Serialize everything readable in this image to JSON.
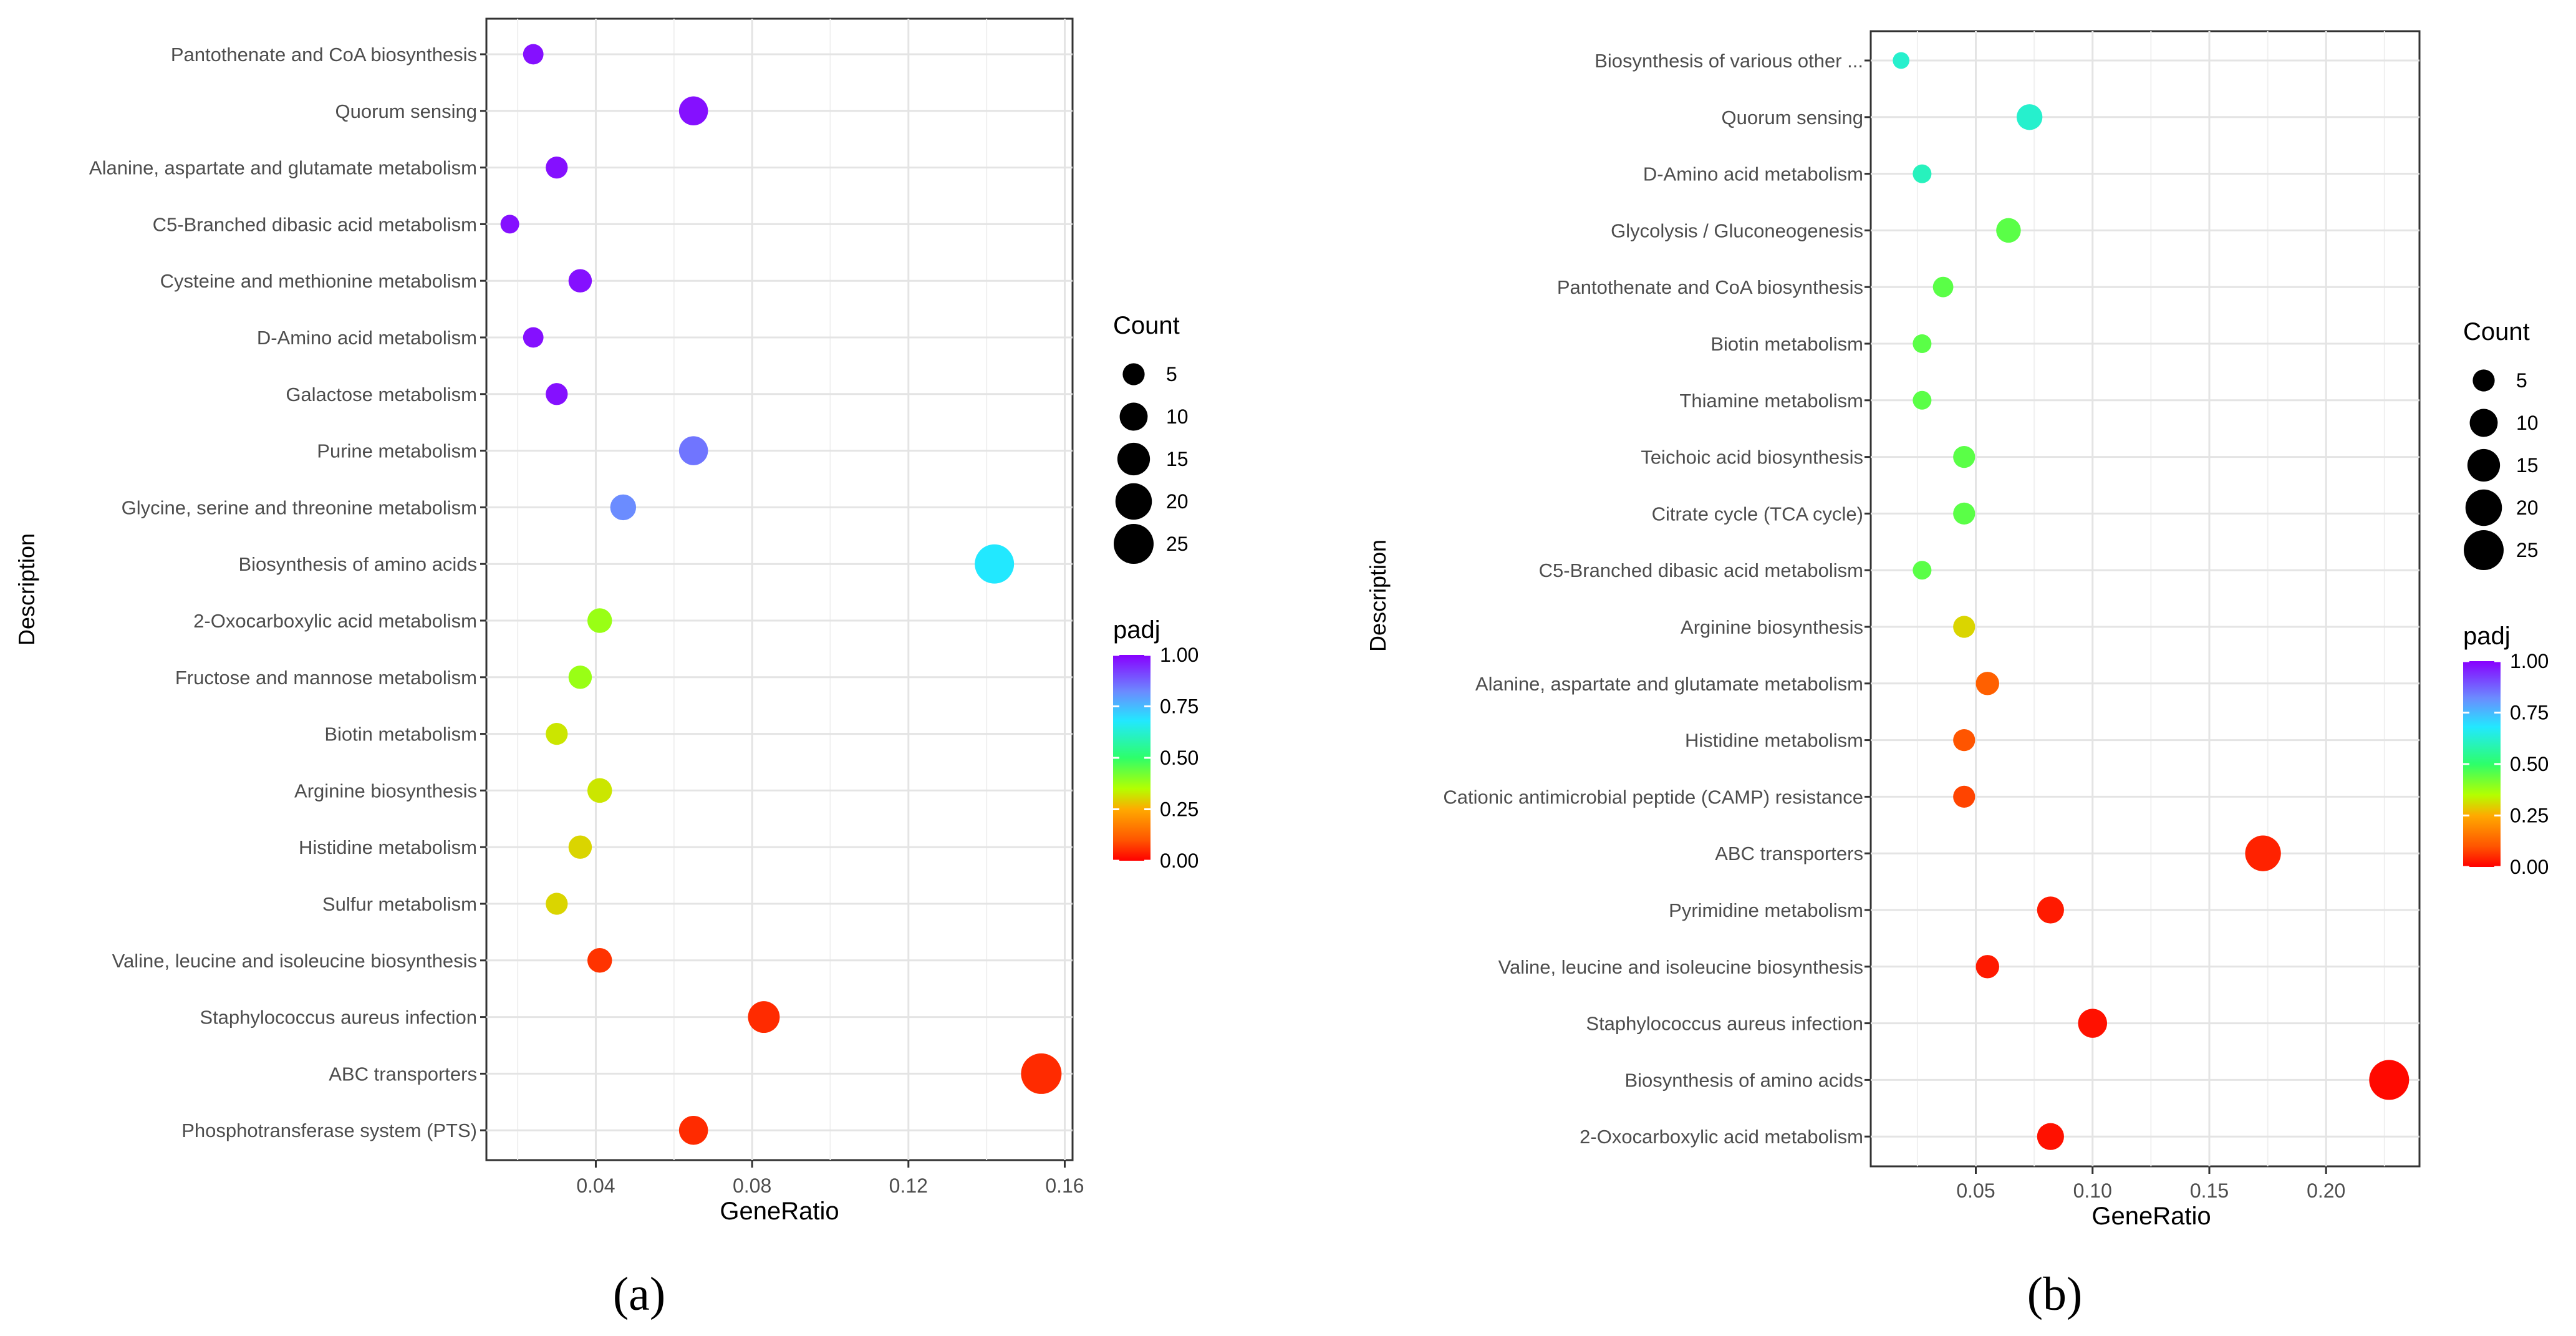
{
  "panels": [
    {
      "caption": "(a)",
      "legend": {
        "count_title": "Count",
        "count_levels": [
          5,
          10,
          15,
          20,
          25
        ],
        "color_title": "padj",
        "color_ticks": [
          "1.00",
          "0.75",
          "0.50",
          "0.25",
          "0.00"
        ]
      }
    },
    {
      "caption": "(b)",
      "legend": {
        "count_title": "Count",
        "count_levels": [
          5,
          10,
          15,
          20,
          25
        ],
        "color_title": "padj",
        "color_ticks": [
          "1.00",
          "0.75",
          "0.50",
          "0.25",
          "0.00"
        ]
      }
    }
  ],
  "chart_data": [
    {
      "type": "scatter",
      "title": "",
      "xlabel": "GeneRatio",
      "ylabel": "Description",
      "xlim": [
        0.012,
        0.162
      ],
      "xticks": [
        0.04,
        0.08,
        0.12,
        0.16
      ],
      "xtick_labels": [
        "0.04",
        "0.08",
        "0.12",
        "0.16"
      ],
      "color_scale": "padj",
      "size_scale": "Count",
      "grid": true,
      "points": [
        {
          "label": "Pantothenate and CoA biosynthesis",
          "x": 0.024,
          "count": 4,
          "padj": 0.98
        },
        {
          "label": "Quorum sensing",
          "x": 0.065,
          "count": 11,
          "padj": 0.98
        },
        {
          "label": "Alanine, aspartate and glutamate metabolism",
          "x": 0.03,
          "count": 5,
          "padj": 0.98
        },
        {
          "label": "C5-Branched dibasic acid metabolism",
          "x": 0.018,
          "count": 3,
          "padj": 0.98
        },
        {
          "label": "Cysteine and methionine metabolism",
          "x": 0.036,
          "count": 6,
          "padj": 0.98
        },
        {
          "label": "D-Amino acid metabolism",
          "x": 0.024,
          "count": 4,
          "padj": 0.98
        },
        {
          "label": "Galactose metabolism",
          "x": 0.03,
          "count": 5,
          "padj": 0.98
        },
        {
          "label": "Purine metabolism",
          "x": 0.065,
          "count": 11,
          "padj": 0.85
        },
        {
          "label": "Glycine, serine and threonine metabolism",
          "x": 0.047,
          "count": 8,
          "padj": 0.82
        },
        {
          "label": "Biosynthesis of amino acids",
          "x": 0.142,
          "count": 24,
          "padj": 0.68
        },
        {
          "label": "2-Oxocarboxylic acid metabolism",
          "x": 0.041,
          "count": 7,
          "padj": 0.38
        },
        {
          "label": "Fructose and mannose metabolism",
          "x": 0.036,
          "count": 6,
          "padj": 0.38
        },
        {
          "label": "Biotin metabolism",
          "x": 0.03,
          "count": 5,
          "padj": 0.32
        },
        {
          "label": "Arginine biosynthesis",
          "x": 0.041,
          "count": 7,
          "padj": 0.32
        },
        {
          "label": "Histidine metabolism",
          "x": 0.036,
          "count": 6,
          "padj": 0.3
        },
        {
          "label": "Sulfur metabolism",
          "x": 0.03,
          "count": 5,
          "padj": 0.3
        },
        {
          "label": "Valine, leucine and isoleucine biosynthesis",
          "x": 0.041,
          "count": 7,
          "padj": 0.06
        },
        {
          "label": "Staphylococcus aureus infection",
          "x": 0.083,
          "count": 14,
          "padj": 0.05
        },
        {
          "label": "ABC transporters",
          "x": 0.154,
          "count": 26,
          "padj": 0.05
        },
        {
          "label": "Phosphotransferase system (PTS)",
          "x": 0.065,
          "count": 11,
          "padj": 0.05
        }
      ]
    },
    {
      "type": "scatter",
      "title": "",
      "xlabel": "GeneRatio",
      "ylabel": "Description",
      "xlim": [
        0.005,
        0.24
      ],
      "xticks": [
        0.05,
        0.1,
        0.15,
        0.2
      ],
      "xtick_labels": [
        "0.05",
        "0.10",
        "0.15",
        "0.20"
      ],
      "color_scale": "padj",
      "size_scale": "Count",
      "grid": true,
      "points": [
        {
          "label": "Biosynthesis of various other ...",
          "x": 0.018,
          "count": 2,
          "padj": 0.62
        },
        {
          "label": "Quorum sensing",
          "x": 0.073,
          "count": 8,
          "padj": 0.62
        },
        {
          "label": "D-Amino acid metabolism",
          "x": 0.027,
          "count": 3,
          "padj": 0.6
        },
        {
          "label": "Glycolysis / Gluconeogenesis",
          "x": 0.064,
          "count": 7,
          "padj": 0.45
        },
        {
          "label": "Pantothenate and CoA biosynthesis",
          "x": 0.036,
          "count": 4,
          "padj": 0.45
        },
        {
          "label": "Biotin metabolism",
          "x": 0.027,
          "count": 3,
          "padj": 0.45
        },
        {
          "label": "Thiamine metabolism",
          "x": 0.027,
          "count": 3,
          "padj": 0.45
        },
        {
          "label": "Teichoic acid biosynthesis",
          "x": 0.045,
          "count": 5,
          "padj": 0.45
        },
        {
          "label": "Citrate cycle (TCA cycle)",
          "x": 0.045,
          "count": 5,
          "padj": 0.45
        },
        {
          "label": "C5-Branched dibasic acid metabolism",
          "x": 0.027,
          "count": 3,
          "padj": 0.45
        },
        {
          "label": "Arginine biosynthesis",
          "x": 0.045,
          "count": 5,
          "padj": 0.3
        },
        {
          "label": "Alanine, aspartate and glutamate metabolism",
          "x": 0.055,
          "count": 6,
          "padj": 0.12
        },
        {
          "label": "Histidine metabolism",
          "x": 0.045,
          "count": 5,
          "padj": 0.1
        },
        {
          "label": "Cationic antimicrobial peptide (CAMP) resistance",
          "x": 0.045,
          "count": 5,
          "padj": 0.08
        },
        {
          "label": "ABC transporters",
          "x": 0.173,
          "count": 19,
          "padj": 0.04
        },
        {
          "label": "Pyrimidine metabolism",
          "x": 0.082,
          "count": 9,
          "padj": 0.03
        },
        {
          "label": "Valine, leucine and isoleucine biosynthesis",
          "x": 0.055,
          "count": 6,
          "padj": 0.03
        },
        {
          "label": "Staphylococcus aureus infection",
          "x": 0.1,
          "count": 11,
          "padj": 0.02
        },
        {
          "label": "Biosynthesis of amino acids",
          "x": 0.227,
          "count": 25,
          "padj": 0.01
        },
        {
          "label": "2-Oxocarboxylic acid metabolism",
          "x": 0.082,
          "count": 9,
          "padj": 0.02
        }
      ]
    }
  ]
}
